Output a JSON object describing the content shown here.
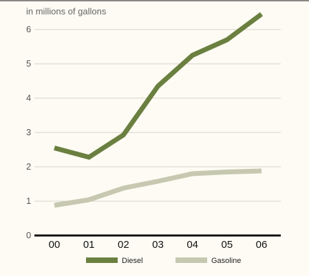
{
  "chart_data": {
    "type": "line",
    "title": "",
    "unit_label": "in millions of gallons",
    "xlabel": "",
    "ylabel": "",
    "categories": [
      "00",
      "01",
      "02",
      "03",
      "04",
      "05",
      "06"
    ],
    "ylim": [
      0,
      6.5
    ],
    "yticks": [
      0,
      1,
      2,
      3,
      4,
      5,
      6
    ],
    "grid": true,
    "legend_position": "bottom",
    "series": [
      {
        "name": "Diesel",
        "color": "#6b8040",
        "values": [
          2.55,
          2.28,
          2.93,
          4.35,
          5.25,
          5.7,
          6.45
        ]
      },
      {
        "name": "Gasoline",
        "color": "#c6c8b0",
        "values": [
          0.88,
          1.04,
          1.38,
          1.58,
          1.8,
          1.85,
          1.88
        ]
      }
    ]
  }
}
